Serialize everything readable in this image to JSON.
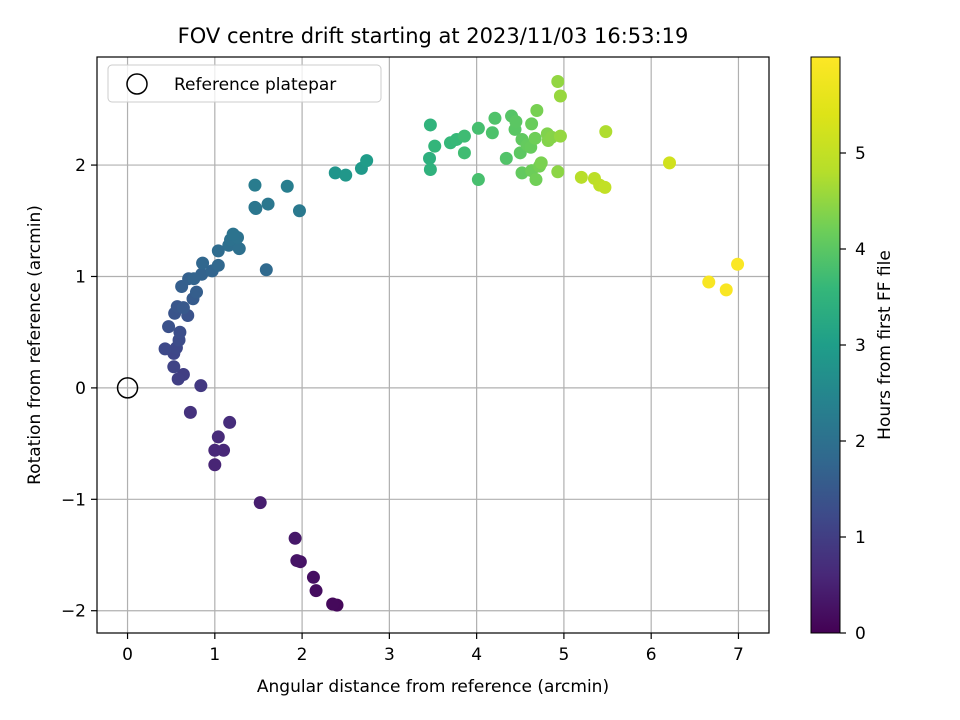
{
  "chart_data": {
    "type": "scatter",
    "title": "FOV centre drift starting at 2023/11/03 16:53:19",
    "xlabel": "Angular distance from reference (arcmin)",
    "ylabel": "Rotation from reference (arcmin)",
    "xlim": [
      -0.35,
      7.35
    ],
    "ylim": [
      -2.2,
      2.97
    ],
    "xticks": [
      0,
      1,
      2,
      3,
      4,
      5,
      6,
      7
    ],
    "yticks": [
      -2,
      -1,
      0,
      1,
      2
    ],
    "grid": true,
    "legend": {
      "placement": "top-left",
      "entries": [
        "Reference platepar"
      ]
    },
    "reference_point": {
      "x": 0,
      "y": 0
    },
    "colorbar": {
      "label": "Hours from first FF file",
      "colormap": "viridis",
      "range": [
        0,
        6.0
      ],
      "ticks": [
        0,
        1,
        2,
        3,
        4,
        5
      ]
    },
    "points": [
      [
        2.4,
        -1.95,
        0.1
      ],
      [
        2.35,
        -1.94,
        0.12
      ],
      [
        2.16,
        -1.82,
        0.18
      ],
      [
        2.13,
        -1.7,
        0.22
      ],
      [
        1.98,
        -1.56,
        0.28
      ],
      [
        1.94,
        -1.55,
        0.3
      ],
      [
        1.92,
        -1.35,
        0.35
      ],
      [
        1.52,
        -1.03,
        0.45
      ],
      [
        1.0,
        -0.69,
        0.55
      ],
      [
        1.1,
        -0.56,
        0.6
      ],
      [
        1.0,
        -0.56,
        0.62
      ],
      [
        1.04,
        -0.44,
        0.65
      ],
      [
        1.17,
        -0.31,
        0.7
      ],
      [
        0.72,
        -0.22,
        0.78
      ],
      [
        0.84,
        0.02,
        0.9
      ],
      [
        0.64,
        0.12,
        1.0
      ],
      [
        0.58,
        0.08,
        1.02
      ],
      [
        0.53,
        0.19,
        1.1
      ],
      [
        0.53,
        0.31,
        1.15
      ],
      [
        0.56,
        0.36,
        1.18
      ],
      [
        0.43,
        0.35,
        1.2
      ],
      [
        0.59,
        0.43,
        1.25
      ],
      [
        0.6,
        0.5,
        1.3
      ],
      [
        0.47,
        0.55,
        1.35
      ],
      [
        0.69,
        0.65,
        1.4
      ],
      [
        0.54,
        0.67,
        1.42
      ],
      [
        0.57,
        0.73,
        1.45
      ],
      [
        0.64,
        0.72,
        1.5
      ],
      [
        0.75,
        0.8,
        1.55
      ],
      [
        0.79,
        0.86,
        1.6
      ],
      [
        0.62,
        0.91,
        1.62
      ],
      [
        0.7,
        0.98,
        1.65
      ],
      [
        0.85,
        1.02,
        1.7
      ],
      [
        0.76,
        0.98,
        1.72
      ],
      [
        0.97,
        1.05,
        1.75
      ],
      [
        0.86,
        1.12,
        1.78
      ],
      [
        1.04,
        1.1,
        1.8
      ],
      [
        1.59,
        1.06,
        1.85
      ],
      [
        1.04,
        1.23,
        1.9
      ],
      [
        1.16,
        1.28,
        1.95
      ],
      [
        1.28,
        1.25,
        1.98
      ],
      [
        1.18,
        1.33,
        2.0
      ],
      [
        1.26,
        1.35,
        2.02
      ],
      [
        1.21,
        1.38,
        2.05
      ],
      [
        1.46,
        1.62,
        2.1
      ],
      [
        1.47,
        1.61,
        2.12
      ],
      [
        1.61,
        1.65,
        2.15
      ],
      [
        1.97,
        1.59,
        2.2
      ],
      [
        1.46,
        1.82,
        2.25
      ],
      [
        1.83,
        1.81,
        2.3
      ],
      [
        2.38,
        1.93,
        2.8
      ],
      [
        2.5,
        1.91,
        2.85
      ],
      [
        2.68,
        1.97,
        2.9
      ],
      [
        2.74,
        2.04,
        2.95
      ],
      [
        3.46,
        2.06,
        3.4
      ],
      [
        3.47,
        1.96,
        3.45
      ],
      [
        3.47,
        2.36,
        3.5
      ],
      [
        3.52,
        2.17,
        3.55
      ],
      [
        3.7,
        2.2,
        3.6
      ],
      [
        3.77,
        2.23,
        3.62
      ],
      [
        3.86,
        2.26,
        3.7
      ],
      [
        3.86,
        2.11,
        3.72
      ],
      [
        4.02,
        2.33,
        3.78
      ],
      [
        4.02,
        1.87,
        3.8
      ],
      [
        4.18,
        2.29,
        3.85
      ],
      [
        4.21,
        2.42,
        3.88
      ],
      [
        4.34,
        2.06,
        3.9
      ],
      [
        4.4,
        2.44,
        3.95
      ],
      [
        4.44,
        2.32,
        3.98
      ],
      [
        4.45,
        2.39,
        4.0
      ],
      [
        4.5,
        2.11,
        4.02
      ],
      [
        4.52,
        2.23,
        4.05
      ],
      [
        4.52,
        1.93,
        4.08
      ],
      [
        4.58,
        2.18,
        4.1
      ],
      [
        4.62,
        2.16,
        4.12
      ],
      [
        4.63,
        2.37,
        4.15
      ],
      [
        4.63,
        1.95,
        4.18
      ],
      [
        4.67,
        2.24,
        4.2
      ],
      [
        4.68,
        1.87,
        4.22
      ],
      [
        4.72,
        1.99,
        4.25
      ],
      [
        4.69,
        2.49,
        4.28
      ],
      [
        4.74,
        2.02,
        4.3
      ],
      [
        4.81,
        2.28,
        4.35
      ],
      [
        4.82,
        2.22,
        4.38
      ],
      [
        4.86,
        2.25,
        4.4
      ],
      [
        4.93,
        1.94,
        4.45
      ],
      [
        4.93,
        2.75,
        4.5
      ],
      [
        4.96,
        2.26,
        4.52
      ],
      [
        4.96,
        2.62,
        4.55
      ],
      [
        5.48,
        2.3,
        4.75
      ],
      [
        5.2,
        1.89,
        4.85
      ],
      [
        5.35,
        1.88,
        4.9
      ],
      [
        5.41,
        1.82,
        4.95
      ],
      [
        5.47,
        1.8,
        5.0
      ],
      [
        6.21,
        2.02,
        5.2
      ],
      [
        6.66,
        0.95,
        5.9
      ],
      [
        6.86,
        0.88,
        5.92
      ],
      [
        6.99,
        1.11,
        5.95
      ]
    ]
  }
}
